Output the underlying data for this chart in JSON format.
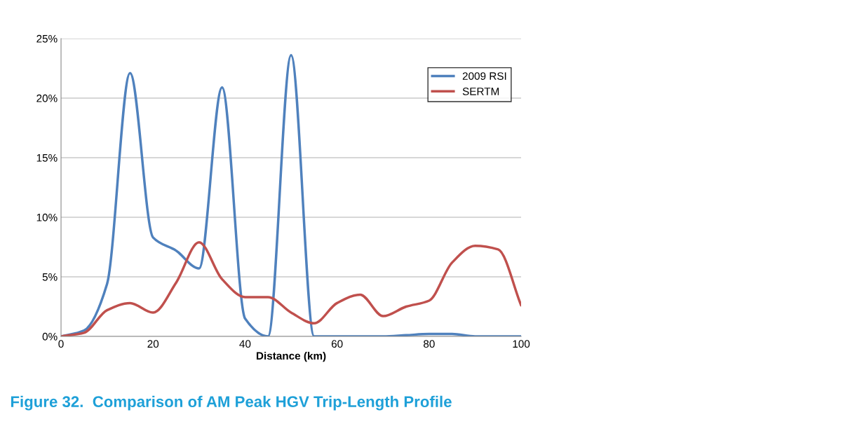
{
  "chart_data": {
    "type": "line",
    "xlabel": "Distance (km)",
    "x": [
      0,
      5,
      10,
      15,
      20,
      25,
      30,
      35,
      40,
      45,
      50,
      55,
      60,
      65,
      70,
      75,
      80,
      85,
      90,
      95,
      100
    ],
    "series": [
      {
        "name": "2009 RSI",
        "color": "#4f81bd",
        "values": [
          0,
          0.5,
          4.4,
          22.1,
          8.3,
          7.2,
          5.7,
          20.9,
          1.5,
          0,
          23.6,
          0,
          0,
          0,
          0,
          0.1,
          0.2,
          0.2,
          0,
          0,
          0
        ]
      },
      {
        "name": "SERTM",
        "color": "#c0504d",
        "values": [
          0,
          0.3,
          2.2,
          2.8,
          2.0,
          4.5,
          7.9,
          4.8,
          3.3,
          3.3,
          2.0,
          1.1,
          2.8,
          3.5,
          1.7,
          2.5,
          3.0,
          6.2,
          7.6,
          7.3,
          2.6
        ]
      }
    ],
    "xlim": [
      0,
      100
    ],
    "xticks": [
      0,
      20,
      40,
      60,
      80,
      100
    ],
    "ylim": [
      0,
      25
    ],
    "yticks": [
      {
        "value": 0,
        "label": "0%"
      },
      {
        "value": 5,
        "label": "5%"
      },
      {
        "value": 10,
        "label": "10%"
      },
      {
        "value": 15,
        "label": "15%"
      },
      {
        "value": 20,
        "label": "20%"
      },
      {
        "value": 25,
        "label": "25%"
      }
    ],
    "grid": "y",
    "legend": "top right",
    "marker": "none",
    "line_style": "solid",
    "annotations": [
      "Figure 32.  Comparison of AM Peak HGV Trip-Length Profile"
    ]
  }
}
